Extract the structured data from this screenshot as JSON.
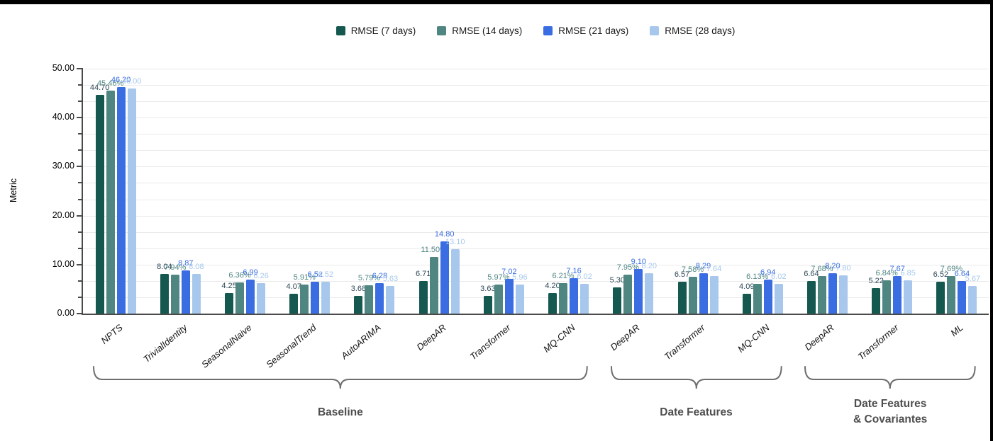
{
  "frame": {
    "edge_color": "#000000",
    "background": "#ffffff"
  },
  "chart_data": {
    "type": "bar",
    "title": "",
    "xlabel": "",
    "ylabel": "Metric",
    "ylim": [
      0,
      50
    ],
    "y_major_step": 10,
    "y_minor_divisions": 3,
    "y_tick_labels": [
      "0.00",
      "10.00",
      "20.00",
      "30.00",
      "40.00",
      "50.00"
    ],
    "grid": true,
    "legend_position": "top-center",
    "categories": [
      "NPTS",
      "TrivialIdentity",
      "SeasonalNaive",
      "SeasonalTrend",
      "AutoARIMA",
      "DeepAR",
      "Transformer",
      "MQ-CNN",
      "DeepAR",
      "Transformer",
      "MQ-CNN",
      "DeepAR",
      "Transformer",
      "ML"
    ],
    "series": [
      {
        "name": "RMSE (7 days)",
        "color": "#14584f",
        "label_color": "#2f4858",
        "values": [
          44.7,
          8.04,
          4.25,
          4.07,
          3.68,
          6.71,
          3.63,
          4.2,
          5.3,
          6.57,
          4.09,
          6.64,
          5.22,
          6.52
        ],
        "labels": [
          "44.70",
          "8.04",
          "4.25",
          "4.07",
          "3.68",
          "6.71",
          "3.63",
          "4.20",
          "5.30",
          "6.57",
          "4.09",
          "6.64",
          "5.22",
          "6.52"
        ]
      },
      {
        "name": "RMSE (14 days)",
        "color": "#4f8682",
        "label_color": "#4f8682",
        "values": [
          45.46,
          7.94,
          6.36,
          5.91,
          5.79,
          11.5,
          5.97,
          6.21,
          7.95,
          7.58,
          6.13,
          7.68,
          6.84,
          7.69
        ],
        "labels": [
          "45.46%",
          "7.94%",
          "6.36%",
          "5.91%",
          "5.79%",
          "11.50%",
          "5.97%",
          "6.21%",
          "7.95%",
          "7.58%",
          "6.13%",
          "7.68%",
          "6.84%",
          "7.69%"
        ]
      },
      {
        "name": "RMSE (21 days)",
        "color": "#3a6de1",
        "label_color": "#3a6de1",
        "values": [
          46.2,
          8.87,
          6.99,
          6.52,
          6.28,
          14.8,
          7.02,
          7.16,
          9.1,
          8.29,
          6.94,
          8.2,
          7.67,
          6.64
        ],
        "labels": [
          "46.20",
          "8.87",
          "6.99",
          "6.52",
          "6.28",
          "14.80",
          "7.02",
          "7.16",
          "9.10",
          "8.29",
          "6.94",
          "8.20",
          "7.67",
          "6.64"
        ]
      },
      {
        "name": "RMSE (28 days)",
        "color": "#a7c8ec",
        "label_color": "#a7c8ec",
        "values": [
          46.0,
          8.08,
          6.26,
          6.52,
          5.63,
          13.1,
          5.96,
          6.02,
          8.2,
          7.64,
          6.02,
          7.8,
          6.85,
          5.67
        ],
        "labels": [
          "46.00",
          "8.08",
          "6.26",
          "6.52",
          "5.63",
          "13.10",
          "5.96",
          "6.02",
          "8.20",
          "7.64",
          "6.02",
          "7.80",
          "6.85",
          "5.67"
        ]
      }
    ],
    "group_braces": [
      {
        "label": "Baseline",
        "start": 0,
        "end": 7
      },
      {
        "label": "Date Features",
        "start": 8,
        "end": 10
      },
      {
        "label": "Date Features\n& Covariantes",
        "start": 11,
        "end": 13
      }
    ],
    "brace_color": "#6e6e6e"
  }
}
